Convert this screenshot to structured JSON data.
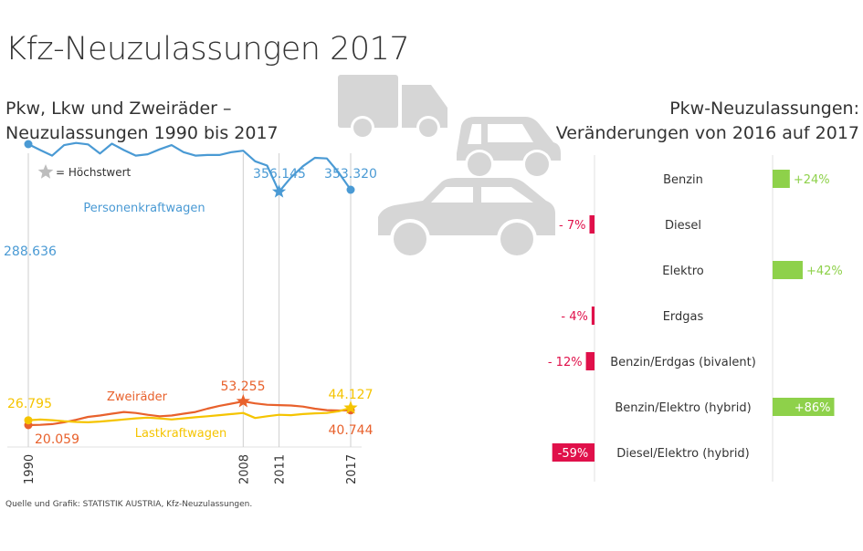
{
  "title": "Kfz-Neuzulassungen 2017",
  "left_subtitle": [
    "Pkw, Lkw und Zweiräder –",
    "Neuzulassungen 1990 bis 2017"
  ],
  "right_subtitle": [
    "Pkw-Neuzulassungen:",
    "Veränderungen von 2016 auf 2017"
  ],
  "legend_star": "= Höchstwert",
  "source": "Quelle und Grafik: STATISTIK AUSTRIA,  Kfz-Neuzulassungen.",
  "icons": [
    "truck-icon",
    "small-car-icon",
    "large-car-icon",
    "star-icon"
  ],
  "colors": {
    "pkw": "#4a9ad4",
    "zweirad": "#e8612c",
    "lkw": "#f5c400",
    "positive": "#8ed14a",
    "negative": "#e0104a",
    "icon": "#d6d6d6"
  },
  "chart_data": [
    {
      "type": "line",
      "x": [
        1990,
        1991,
        1992,
        1993,
        1994,
        1995,
        1996,
        1997,
        1998,
        1999,
        2000,
        2001,
        2002,
        2003,
        2004,
        2005,
        2006,
        2007,
        2008,
        2009,
        2010,
        2011,
        2012,
        2013,
        2014,
        2015,
        2016,
        2017
      ],
      "x_ticks": [
        "1990",
        "2008",
        "2011",
        "2017"
      ],
      "series": [
        {
          "name": "Personenkraftwagen",
          "color": "#4a9ad4",
          "values": [
            288636,
            297000,
            305000,
            290000,
            287000,
            289000,
            302000,
            288000,
            297000,
            305000,
            303000,
            296000,
            290000,
            300000,
            305000,
            304000,
            304000,
            300000,
            298000,
            313000,
            319000,
            356145,
            336000,
            320000,
            308000,
            309000,
            329000,
            353320
          ],
          "labels": [
            {
              "year": 1990,
              "text": "288.636"
            },
            {
              "year": 2011,
              "text": "356.145"
            },
            {
              "year": 2017,
              "text": "353.320"
            }
          ],
          "max_year": 2011
        },
        {
          "name": "Zweiräder",
          "color": "#e8612c",
          "values": [
            20059,
            20500,
            21500,
            24000,
            27500,
            31500,
            33500,
            36000,
            38500,
            37000,
            34500,
            32500,
            33500,
            36000,
            38500,
            43000,
            47000,
            50000,
            53255,
            50500,
            48500,
            48000,
            47500,
            46000,
            43000,
            41000,
            40500,
            40744
          ],
          "labels": [
            {
              "year": 1990,
              "text": "20.059"
            },
            {
              "year": 2008,
              "text": "53.255"
            },
            {
              "year": 2017,
              "text": "40.744"
            }
          ],
          "max_year": 2008
        },
        {
          "name": "Lastkraftwagen",
          "color": "#f5c400",
          "values": [
            26795,
            27800,
            27000,
            25500,
            24500,
            24000,
            25000,
            26500,
            28000,
            29500,
            30500,
            29500,
            28000,
            29500,
            31000,
            32500,
            34000,
            35500,
            37000,
            30000,
            32500,
            34500,
            34000,
            35500,
            36500,
            37000,
            39500,
            44127
          ],
          "labels": [
            {
              "year": 1990,
              "text": "26.795"
            },
            {
              "year": 2017,
              "text": "44.127"
            }
          ],
          "max_year": 2017
        }
      ]
    },
    {
      "type": "bar",
      "categories": [
        "Benzin",
        "Diesel",
        "Elektro",
        "Erdgas",
        "Benzin/Erdgas (bivalent)",
        "Benzin/Elektro (hybrid)",
        "Diesel/Elektro (hybrid)"
      ],
      "values": [
        24,
        -7,
        42,
        -4,
        -12,
        86,
        -59
      ],
      "value_labels": [
        "+24%",
        "- 7%",
        "+42%",
        "- 4%",
        "- 12%",
        "+86%",
        "-59%"
      ]
    }
  ]
}
